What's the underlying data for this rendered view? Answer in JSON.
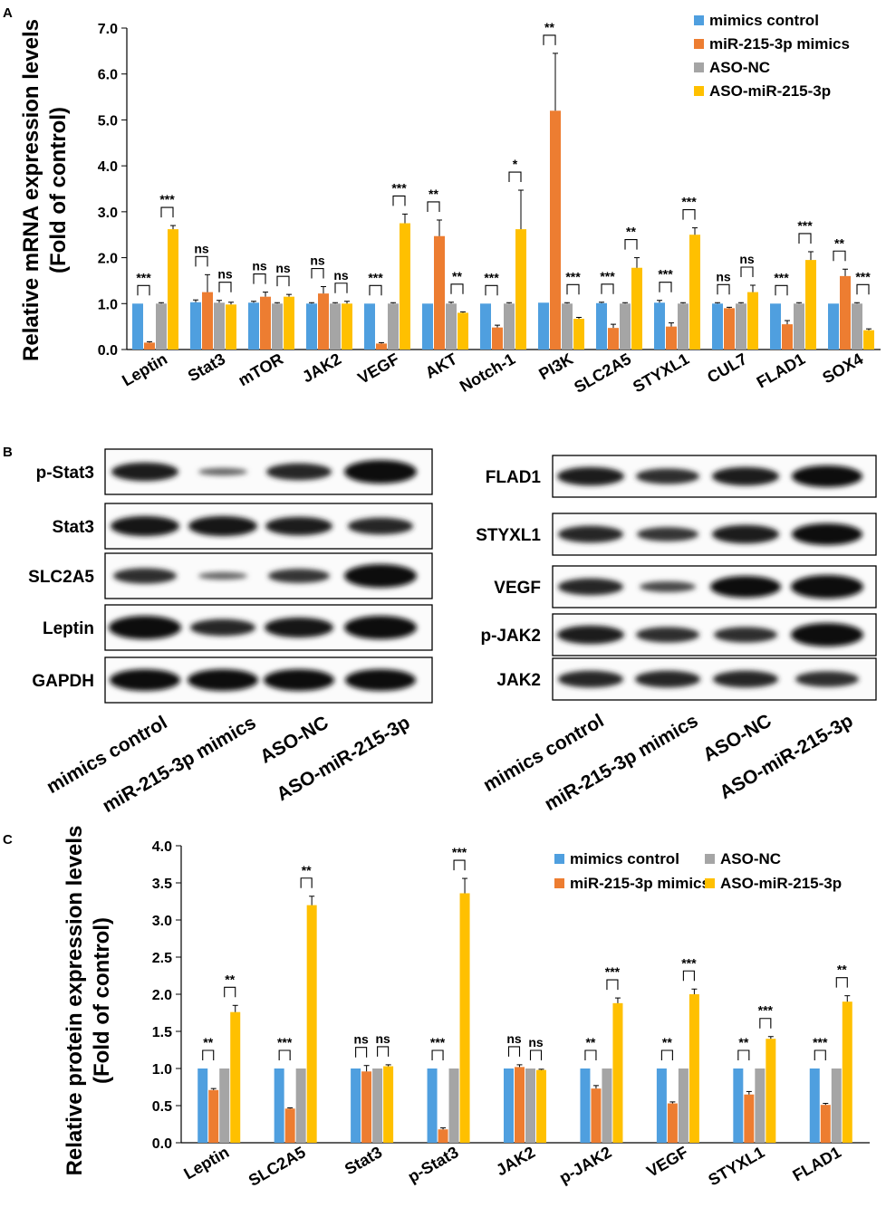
{
  "panels": {
    "a": "A",
    "b": "B",
    "c": "C"
  },
  "chart_data": [
    {
      "type": "bar",
      "panel": "A",
      "ylabel_line1": "Relative mRNA expression levels",
      "ylabel_line2": "(Fold of control)",
      "ylim": [
        0,
        7
      ],
      "yticks": [
        "0.0",
        "1.0",
        "2.0",
        "3.0",
        "4.0",
        "5.0",
        "6.0",
        "7.0"
      ],
      "legend_position": "top-right",
      "categories": [
        "Leptin",
        "Stat3",
        "mTOR",
        "JAK2",
        "VEGF",
        "AKT",
        "Notch-1",
        "PI3K",
        "SLC2A5",
        "STYXL1",
        "CUL7",
        "FLAD1",
        "SOX4"
      ],
      "series": [
        {
          "name": "mimics control",
          "color": "#4f9fdf",
          "values": [
            1.0,
            1.03,
            1.02,
            1.0,
            1.0,
            1.0,
            1.0,
            1.02,
            1.01,
            1.02,
            1.0,
            1.0,
            1.0
          ],
          "errors": [
            0,
            0.05,
            0.03,
            0.02,
            0,
            0,
            0,
            0,
            0.02,
            0.05,
            0.02,
            0,
            0
          ]
        },
        {
          "name": "miR-215-3p mimics",
          "color": "#ed7d31",
          "values": [
            0.15,
            1.25,
            1.15,
            1.22,
            0.13,
            2.47,
            0.48,
            5.2,
            0.47,
            0.5,
            0.9,
            0.55,
            1.6
          ],
          "errors": [
            0.02,
            0.38,
            0.1,
            0.15,
            0.02,
            0.35,
            0.05,
            1.25,
            0.08,
            0.08,
            0.02,
            0.08,
            0.15
          ]
        },
        {
          "name": "ASO-NC",
          "color": "#a5a5a5",
          "values": [
            1.0,
            1.02,
            1.0,
            1.0,
            1.0,
            1.0,
            1.0,
            1.0,
            1.0,
            1.0,
            1.0,
            1.0,
            1.0
          ],
          "errors": [
            0.02,
            0.05,
            0.02,
            0.02,
            0.02,
            0.03,
            0.02,
            0.02,
            0.02,
            0.02,
            0.02,
            0.02,
            0.02
          ]
        },
        {
          "name": "ASO-miR-215-3p",
          "color": "#ffc000",
          "values": [
            2.62,
            0.98,
            1.15,
            1.0,
            2.75,
            0.8,
            2.62,
            0.67,
            1.78,
            2.5,
            1.25,
            1.95,
            0.42
          ],
          "errors": [
            0.08,
            0.05,
            0.05,
            0.05,
            0.2,
            0.02,
            0.85,
            0.03,
            0.22,
            0.15,
            0.15,
            0.18,
            0.03
          ]
        }
      ],
      "significance": [
        [
          "***",
          "***"
        ],
        [
          "ns",
          "ns"
        ],
        [
          "ns",
          "ns"
        ],
        [
          "ns",
          "ns"
        ],
        [
          "***",
          "***"
        ],
        [
          "**",
          "**"
        ],
        [
          "***",
          "*"
        ],
        [
          "**",
          "***"
        ],
        [
          "***",
          "**"
        ],
        [
          "***",
          "***"
        ],
        [
          "ns",
          "ns"
        ],
        [
          "***",
          "***"
        ],
        [
          "**",
          "***"
        ]
      ]
    },
    {
      "type": "bar",
      "panel": "C",
      "ylabel_line1": "Relative protein expression levels",
      "ylabel_line2": "(Fold of control)",
      "ylim": [
        0,
        4
      ],
      "yticks": [
        "0.0",
        "0.5",
        "1.0",
        "1.5",
        "2.0",
        "2.5",
        "3.0",
        "3.5",
        "4.0"
      ],
      "legend_position": "top-right",
      "categories": [
        "Leptin",
        "SLC2A5",
        "Stat3",
        "p-Stat3",
        "JAK2",
        "p-JAK2",
        "VEGF",
        "STYXL1",
        "FLAD1"
      ],
      "series": [
        {
          "name": "mimics control",
          "color": "#4f9fdf",
          "values": [
            1.0,
            1.0,
            1.0,
            1.0,
            1.0,
            1.0,
            1.0,
            1.0,
            1.0
          ],
          "errors": [
            0,
            0,
            0,
            0,
            0,
            0,
            0,
            0,
            0
          ]
        },
        {
          "name": "miR-215-3p mimics",
          "color": "#ed7d31",
          "values": [
            0.71,
            0.46,
            0.96,
            0.18,
            1.02,
            0.73,
            0.53,
            0.65,
            0.51
          ],
          "errors": [
            0.02,
            0.01,
            0.08,
            0.02,
            0.03,
            0.04,
            0.02,
            0.04,
            0.02
          ]
        },
        {
          "name": "ASO-NC",
          "color": "#a5a5a5",
          "values": [
            1.0,
            1.0,
            1.0,
            1.0,
            1.0,
            1.0,
            1.0,
            1.0,
            1.0
          ],
          "errors": [
            0,
            0,
            0,
            0,
            0,
            0,
            0,
            0,
            0
          ]
        },
        {
          "name": "ASO-miR-215-3p",
          "color": "#ffc000",
          "values": [
            1.76,
            3.2,
            1.03,
            3.36,
            0.98,
            1.88,
            2.0,
            1.4,
            1.9
          ],
          "errors": [
            0.09,
            0.12,
            0.02,
            0.2,
            0.01,
            0.07,
            0.07,
            0.03,
            0.08
          ]
        }
      ],
      "significance": [
        [
          "**",
          "**"
        ],
        [
          "***",
          "**"
        ],
        [
          "ns",
          "ns"
        ],
        [
          "***",
          "***"
        ],
        [
          "ns",
          "ns"
        ],
        [
          "**",
          "***"
        ],
        [
          "**",
          "***"
        ],
        [
          "**",
          "***"
        ],
        [
          "***",
          "**"
        ]
      ]
    }
  ],
  "blots": {
    "conditions": [
      "mimics control",
      "miR-215-3p mimics",
      "ASO-NC",
      "ASO-miR-215-3p"
    ],
    "left": [
      {
        "label": "p-Stat3",
        "intensity": [
          0.85,
          0.35,
          0.8,
          1.0
        ]
      },
      {
        "label": "Stat3",
        "intensity": [
          0.9,
          0.9,
          0.85,
          0.8
        ]
      },
      {
        "label": "SLC2A5",
        "intensity": [
          0.75,
          0.35,
          0.7,
          1.0
        ]
      },
      {
        "label": "Leptin",
        "intensity": [
          1.0,
          0.8,
          0.9,
          1.0
        ]
      },
      {
        "label": "GAPDH",
        "intensity": [
          0.95,
          0.95,
          0.95,
          0.95
        ]
      }
    ],
    "right": [
      {
        "label": "FLAD1",
        "intensity": [
          0.85,
          0.75,
          0.85,
          0.95
        ]
      },
      {
        "label": "STYXL1",
        "intensity": [
          0.8,
          0.7,
          0.85,
          0.95
        ]
      },
      {
        "label": "VEGF",
        "intensity": [
          0.8,
          0.55,
          0.95,
          1.0
        ]
      },
      {
        "label": "p-JAK2",
        "intensity": [
          0.85,
          0.75,
          0.75,
          1.0
        ]
      },
      {
        "label": "JAK2",
        "intensity": [
          0.8,
          0.8,
          0.8,
          0.75
        ]
      }
    ]
  }
}
